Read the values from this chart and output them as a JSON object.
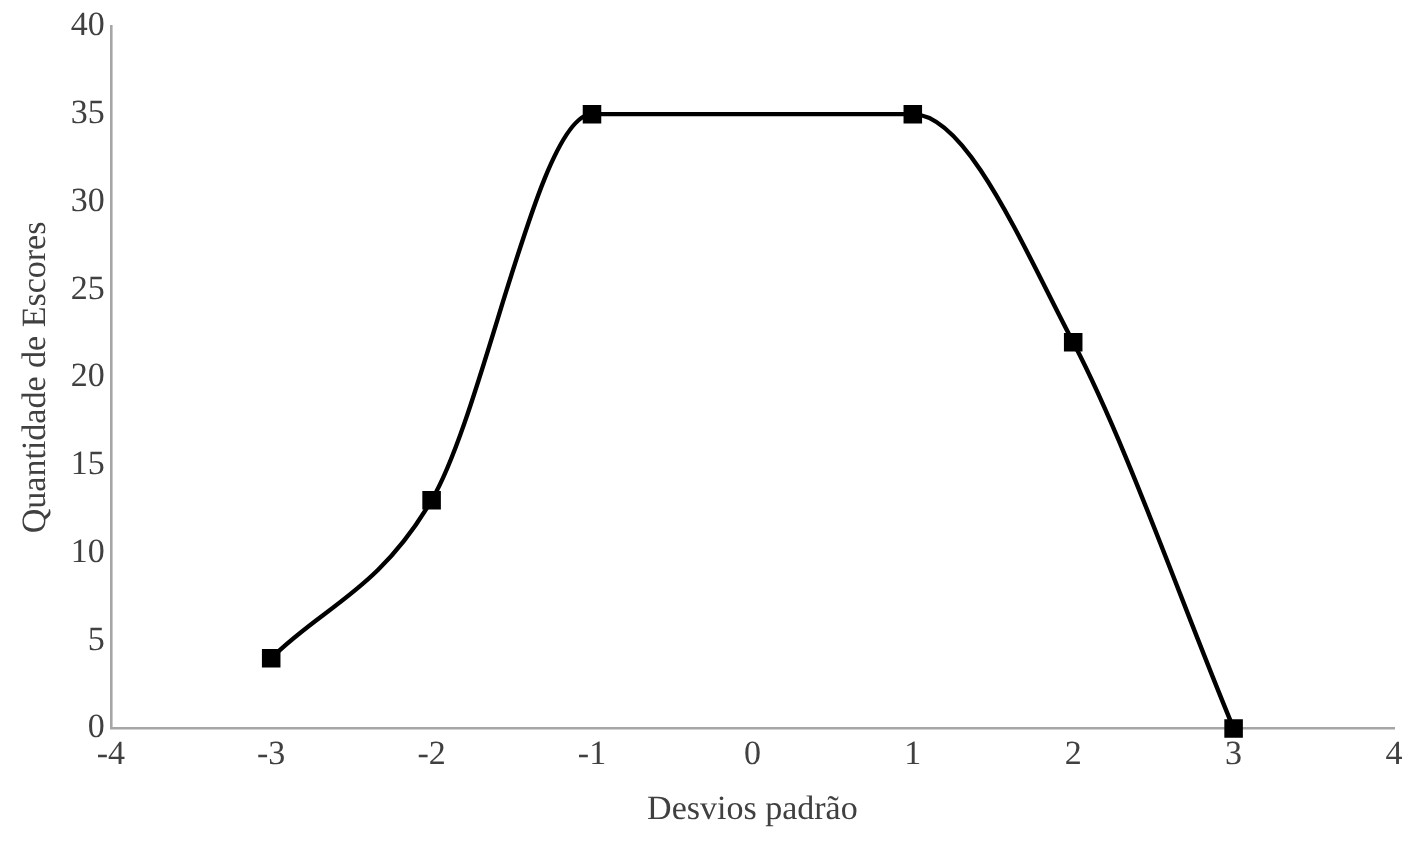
{
  "chart_data": {
    "type": "line",
    "xlabel": "Desvios padrão",
    "ylabel": "Quantidade de Escores",
    "x": [
      -3,
      -2,
      -1,
      1,
      2,
      3
    ],
    "series": [
      {
        "color": "#000000",
        "values": [
          4,
          13,
          35,
          35,
          22,
          0
        ]
      }
    ],
    "xlim": [
      -4,
      4
    ],
    "xticks": [
      -4,
      -3,
      -2,
      -1,
      0,
      1,
      2,
      3,
      4
    ],
    "ylim": [
      0,
      40
    ],
    "yticks": [
      0,
      5,
      10,
      15,
      20,
      25,
      30,
      35,
      40
    ],
    "grid": false,
    "legend": false,
    "marker": "square",
    "line_style": "solid"
  }
}
